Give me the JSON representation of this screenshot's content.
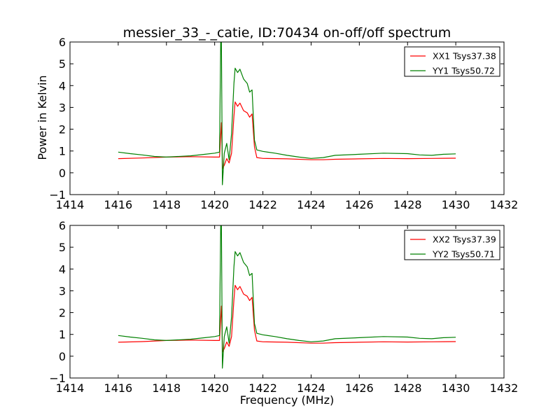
{
  "chart_data": {
    "title": "messier_33_-_catie, ID:70434 on-off/off spectrum",
    "xlabel": "Frequency (MHz)",
    "ylabel": "Power in Kelvin",
    "panels": [
      {
        "type": "line",
        "xlim": [
          1414,
          1432
        ],
        "ylim": [
          -1,
          6
        ],
        "xticks": [
          "1414",
          "1416",
          "1418",
          "1420",
          "1422",
          "1424",
          "1426",
          "1428",
          "1430",
          "1432"
        ],
        "yticks": [
          "−1",
          "0",
          "1",
          "2",
          "3",
          "4",
          "5",
          "6"
        ],
        "legend_position": "top-right",
        "series": [
          {
            "name": "XX1 Tsys37.38",
            "color": "#ff0000",
            "points": [
              [
                1416.0,
                0.65
              ],
              [
                1417.0,
                0.68
              ],
              [
                1418.0,
                0.72
              ],
              [
                1419.0,
                0.74
              ],
              [
                1420.0,
                0.72
              ],
              [
                1420.2,
                0.72
              ],
              [
                1420.28,
                2.3
              ],
              [
                1420.33,
                0.2
              ],
              [
                1420.4,
                0.35
              ],
              [
                1420.5,
                0.65
              ],
              [
                1420.6,
                0.45
              ],
              [
                1420.7,
                0.9
              ],
              [
                1420.8,
                2.6
              ],
              [
                1420.85,
                3.25
              ],
              [
                1420.95,
                3.05
              ],
              [
                1421.05,
                3.2
              ],
              [
                1421.2,
                2.85
              ],
              [
                1421.35,
                2.75
              ],
              [
                1421.45,
                2.55
              ],
              [
                1421.55,
                2.7
              ],
              [
                1421.65,
                1.2
              ],
              [
                1421.75,
                0.7
              ],
              [
                1422.0,
                0.66
              ],
              [
                1423.0,
                0.64
              ],
              [
                1424.0,
                0.6
              ],
              [
                1424.5,
                0.6
              ],
              [
                1425.0,
                0.62
              ],
              [
                1426.0,
                0.64
              ],
              [
                1427.0,
                0.66
              ],
              [
                1428.0,
                0.65
              ],
              [
                1429.0,
                0.66
              ],
              [
                1430.0,
                0.67
              ]
            ]
          },
          {
            "name": "YY1 Tsys50.72",
            "color": "#008000",
            "points": [
              [
                1416.0,
                0.95
              ],
              [
                1416.5,
                0.88
              ],
              [
                1417.0,
                0.82
              ],
              [
                1417.5,
                0.75
              ],
              [
                1418.0,
                0.72
              ],
              [
                1419.0,
                0.78
              ],
              [
                1419.6,
                0.85
              ],
              [
                1420.0,
                0.9
              ],
              [
                1420.2,
                0.95
              ],
              [
                1420.25,
                6.0
              ],
              [
                1420.28,
                6.0
              ],
              [
                1420.32,
                -0.55
              ],
              [
                1420.4,
                0.9
              ],
              [
                1420.5,
                1.35
              ],
              [
                1420.6,
                0.6
              ],
              [
                1420.7,
                1.8
              ],
              [
                1420.8,
                4.1
              ],
              [
                1420.85,
                4.8
              ],
              [
                1420.95,
                4.6
              ],
              [
                1421.05,
                4.75
              ],
              [
                1421.2,
                4.3
              ],
              [
                1421.35,
                4.1
              ],
              [
                1421.45,
                3.7
              ],
              [
                1421.55,
                3.8
              ],
              [
                1421.65,
                1.5
              ],
              [
                1421.75,
                1.05
              ],
              [
                1422.0,
                0.98
              ],
              [
                1422.5,
                0.9
              ],
              [
                1423.0,
                0.8
              ],
              [
                1423.5,
                0.72
              ],
              [
                1424.0,
                0.66
              ],
              [
                1424.5,
                0.7
              ],
              [
                1425.0,
                0.8
              ],
              [
                1426.0,
                0.85
              ],
              [
                1427.0,
                0.9
              ],
              [
                1428.0,
                0.88
              ],
              [
                1428.5,
                0.82
              ],
              [
                1429.0,
                0.8
              ],
              [
                1429.5,
                0.85
              ],
              [
                1430.0,
                0.87
              ]
            ]
          }
        ]
      },
      {
        "type": "line",
        "xlim": [
          1414,
          1432
        ],
        "ylim": [
          -1,
          6
        ],
        "xticks": [
          "1414",
          "1416",
          "1418",
          "1420",
          "1422",
          "1424",
          "1426",
          "1428",
          "1430",
          "1432"
        ],
        "yticks": [
          "−1",
          "0",
          "1",
          "2",
          "3",
          "4",
          "5",
          "6"
        ],
        "legend_position": "top-right",
        "series": [
          {
            "name": "XX2 Tsys37.39",
            "color": "#ff0000",
            "points": [
              [
                1416.0,
                0.64
              ],
              [
                1417.0,
                0.67
              ],
              [
                1418.0,
                0.72
              ],
              [
                1419.0,
                0.74
              ],
              [
                1420.0,
                0.72
              ],
              [
                1420.2,
                0.72
              ],
              [
                1420.28,
                2.3
              ],
              [
                1420.33,
                0.2
              ],
              [
                1420.4,
                0.35
              ],
              [
                1420.5,
                0.65
              ],
              [
                1420.6,
                0.45
              ],
              [
                1420.7,
                0.9
              ],
              [
                1420.8,
                2.6
              ],
              [
                1420.85,
                3.25
              ],
              [
                1420.95,
                3.05
              ],
              [
                1421.05,
                3.2
              ],
              [
                1421.2,
                2.85
              ],
              [
                1421.35,
                2.75
              ],
              [
                1421.45,
                2.55
              ],
              [
                1421.55,
                2.7
              ],
              [
                1421.65,
                1.2
              ],
              [
                1421.75,
                0.7
              ],
              [
                1422.0,
                0.66
              ],
              [
                1423.0,
                0.64
              ],
              [
                1424.0,
                0.6
              ],
              [
                1424.5,
                0.6
              ],
              [
                1425.0,
                0.62
              ],
              [
                1426.0,
                0.64
              ],
              [
                1427.0,
                0.66
              ],
              [
                1428.0,
                0.65
              ],
              [
                1429.0,
                0.66
              ],
              [
                1430.0,
                0.67
              ]
            ]
          },
          {
            "name": "YY2 Tsys50.71",
            "color": "#008000",
            "points": [
              [
                1416.0,
                0.95
              ],
              [
                1416.5,
                0.88
              ],
              [
                1417.0,
                0.82
              ],
              [
                1417.5,
                0.75
              ],
              [
                1418.0,
                0.72
              ],
              [
                1419.0,
                0.78
              ],
              [
                1419.6,
                0.85
              ],
              [
                1420.0,
                0.9
              ],
              [
                1420.2,
                0.95
              ],
              [
                1420.25,
                6.0
              ],
              [
                1420.28,
                6.0
              ],
              [
                1420.32,
                -0.55
              ],
              [
                1420.4,
                0.9
              ],
              [
                1420.5,
                1.35
              ],
              [
                1420.6,
                0.6
              ],
              [
                1420.7,
                1.8
              ],
              [
                1420.8,
                4.1
              ],
              [
                1420.85,
                4.8
              ],
              [
                1420.95,
                4.6
              ],
              [
                1421.05,
                4.75
              ],
              [
                1421.2,
                4.3
              ],
              [
                1421.35,
                4.1
              ],
              [
                1421.45,
                3.7
              ],
              [
                1421.55,
                3.8
              ],
              [
                1421.65,
                1.5
              ],
              [
                1421.75,
                1.05
              ],
              [
                1422.0,
                0.98
              ],
              [
                1422.5,
                0.9
              ],
              [
                1423.0,
                0.8
              ],
              [
                1423.5,
                0.72
              ],
              [
                1424.0,
                0.66
              ],
              [
                1424.5,
                0.7
              ],
              [
                1425.0,
                0.8
              ],
              [
                1426.0,
                0.85
              ],
              [
                1427.0,
                0.9
              ],
              [
                1428.0,
                0.88
              ],
              [
                1428.5,
                0.82
              ],
              [
                1429.0,
                0.8
              ],
              [
                1429.5,
                0.85
              ],
              [
                1430.0,
                0.87
              ]
            ]
          }
        ]
      }
    ]
  }
}
